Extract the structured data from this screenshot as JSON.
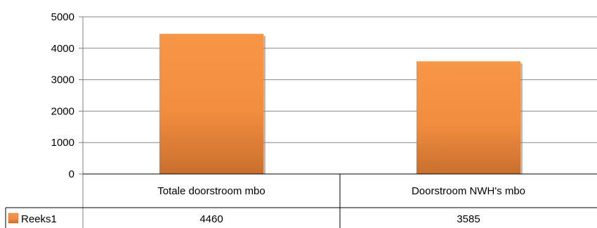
{
  "chart_data": {
    "type": "bar",
    "categories": [
      "Totale doorstroom mbo",
      "Doorstroom NWH's mbo"
    ],
    "series": [
      {
        "name": "Reeks1",
        "values": [
          4460,
          3585
        ],
        "color": "#f08a35"
      }
    ],
    "ylim": [
      0,
      5000
    ],
    "yticks": [
      "0",
      "1000",
      "2000",
      "3000",
      "4000",
      "5000"
    ],
    "grid": true,
    "legend": "data-table",
    "table_values": [
      "4460",
      "3585"
    ],
    "colors": {
      "bar_top": "#f79646",
      "bar_bottom": "#c8702e",
      "grid": "#868686",
      "axis": "#808080"
    }
  }
}
